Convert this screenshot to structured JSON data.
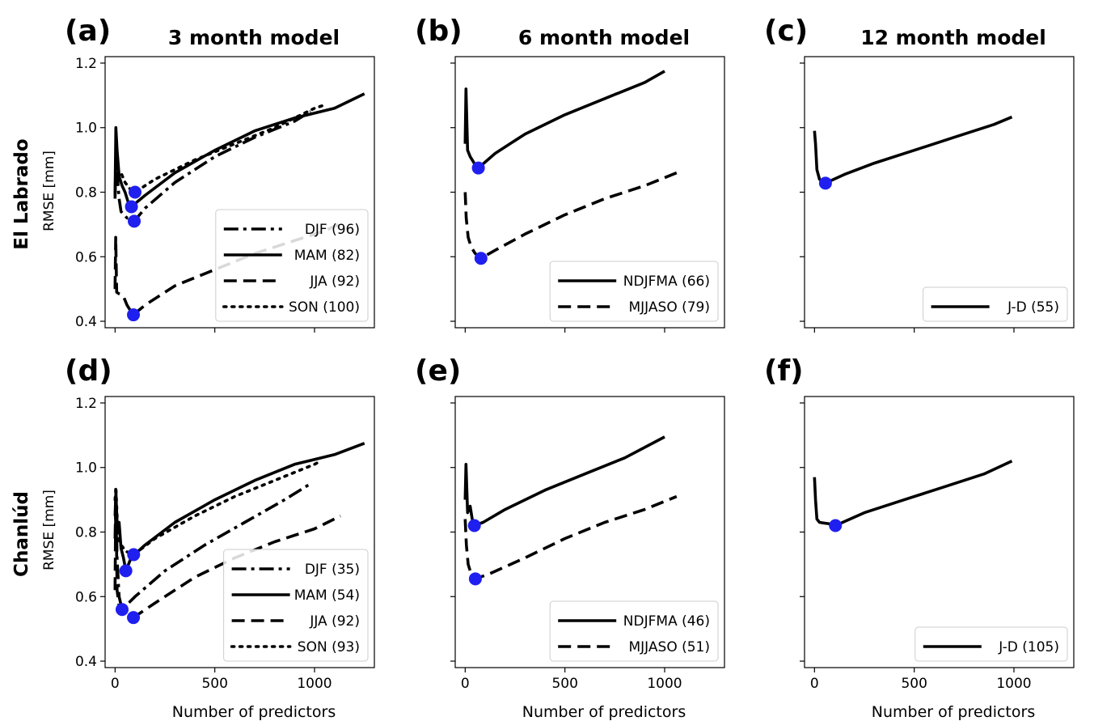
{
  "figure": {
    "rows": [
      {
        "label": "El Labrado",
        "ylabel": "RMSE [mm]"
      },
      {
        "label": "Chanlúd",
        "ylabel": "RMSE [mm]"
      }
    ],
    "columns": [
      {
        "title": "3 month model"
      },
      {
        "title": "6 month model"
      },
      {
        "title": "12 month model"
      }
    ],
    "xlabel": "Number of predictors",
    "x_ticks": [
      0,
      500,
      1000
    ],
    "y_ticks": [
      "0.4",
      "0.6",
      "0.8",
      "1.0",
      "1.2"
    ],
    "colors": {
      "line": "#000000",
      "marker": "#1f1ff0",
      "legend_border": "#cccccc"
    }
  },
  "chart_data": [
    {
      "panel": "(a)",
      "row": 0,
      "col": 0,
      "type": "line",
      "xlim": [
        -50,
        1300
      ],
      "ylim": [
        0.38,
        1.22
      ],
      "legend_position": "lower-right",
      "series": [
        {
          "name": "DJF (96)",
          "style": "dashdot",
          "min": [
            96,
            0.71
          ],
          "points": [
            [
              0,
              0.78
            ],
            [
              5,
              0.95
            ],
            [
              10,
              0.86
            ],
            [
              20,
              0.78
            ],
            [
              30,
              0.74
            ],
            [
              45,
              0.73
            ],
            [
              60,
              0.72
            ],
            [
              80,
              0.72
            ],
            [
              96,
              0.71
            ],
            [
              150,
              0.75
            ],
            [
              300,
              0.83
            ],
            [
              500,
              0.91
            ],
            [
              700,
              0.97
            ],
            [
              900,
              1.02
            ],
            [
              980,
              1.05
            ]
          ]
        },
        {
          "name": "MAM (82)",
          "style": "solid",
          "min": [
            82,
            0.755
          ],
          "points": [
            [
              0,
              0.79
            ],
            [
              4,
              1.0
            ],
            [
              10,
              0.93
            ],
            [
              20,
              0.85
            ],
            [
              35,
              0.82
            ],
            [
              50,
              0.8
            ],
            [
              65,
              0.77
            ],
            [
              82,
              0.755
            ],
            [
              150,
              0.79
            ],
            [
              300,
              0.86
            ],
            [
              500,
              0.93
            ],
            [
              700,
              0.99
            ],
            [
              900,
              1.03
            ],
            [
              1100,
              1.06
            ],
            [
              1250,
              1.105
            ]
          ]
        },
        {
          "name": "JJA (92)",
          "style": "dashed",
          "min": [
            92,
            0.42
          ],
          "points": [
            [
              0,
              0.5
            ],
            [
              3,
              0.66
            ],
            [
              8,
              0.49
            ],
            [
              20,
              0.485
            ],
            [
              40,
              0.48
            ],
            [
              60,
              0.45
            ],
            [
              80,
              0.43
            ],
            [
              92,
              0.42
            ],
            [
              150,
              0.45
            ],
            [
              300,
              0.51
            ],
            [
              500,
              0.56
            ],
            [
              700,
              0.61
            ],
            [
              900,
              0.65
            ],
            [
              1050,
              0.68
            ],
            [
              1120,
              0.7
            ]
          ]
        },
        {
          "name": "SON (100)",
          "style": "dotted",
          "min": [
            100,
            0.8
          ],
          "points": [
            [
              0,
              0.8
            ],
            [
              5,
              0.9
            ],
            [
              15,
              0.87
            ],
            [
              30,
              0.86
            ],
            [
              50,
              0.83
            ],
            [
              75,
              0.81
            ],
            [
              100,
              0.8
            ],
            [
              200,
              0.84
            ],
            [
              400,
              0.9
            ],
            [
              600,
              0.95
            ],
            [
              800,
              1.0
            ],
            [
              1000,
              1.06
            ],
            [
              1050,
              1.07
            ]
          ]
        }
      ]
    },
    {
      "panel": "(b)",
      "row": 0,
      "col": 1,
      "type": "line",
      "xlim": [
        -50,
        1300
      ],
      "ylim": [
        0.38,
        1.22
      ],
      "legend_position": "lower-right",
      "series": [
        {
          "name": "NDJFMA (66)",
          "style": "solid",
          "min": [
            66,
            0.875
          ],
          "points": [
            [
              0,
              0.95
            ],
            [
              4,
              1.12
            ],
            [
              12,
              0.93
            ],
            [
              25,
              0.91
            ],
            [
              45,
              0.89
            ],
            [
              66,
              0.875
            ],
            [
              150,
              0.92
            ],
            [
              300,
              0.98
            ],
            [
              500,
              1.04
            ],
            [
              700,
              1.09
            ],
            [
              900,
              1.14
            ],
            [
              1000,
              1.175
            ]
          ]
        },
        {
          "name": "MJJASO (79)",
          "style": "dashed",
          "min": [
            79,
            0.595
          ],
          "points": [
            [
              0,
              0.8
            ],
            [
              5,
              0.72
            ],
            [
              15,
              0.66
            ],
            [
              30,
              0.63
            ],
            [
              50,
              0.61
            ],
            [
              79,
              0.595
            ],
            [
              150,
              0.62
            ],
            [
              300,
              0.67
            ],
            [
              500,
              0.73
            ],
            [
              700,
              0.78
            ],
            [
              900,
              0.82
            ],
            [
              1060,
              0.86
            ]
          ]
        }
      ]
    },
    {
      "panel": "(c)",
      "row": 0,
      "col": 2,
      "type": "line",
      "xlim": [
        -50,
        1300
      ],
      "ylim": [
        0.38,
        1.22
      ],
      "legend_position": "lower-right",
      "series": [
        {
          "name": "J-D (55)",
          "style": "solid",
          "min": [
            55,
            0.828
          ],
          "points": [
            [
              0,
              0.99
            ],
            [
              5,
              0.95
            ],
            [
              12,
              0.87
            ],
            [
              25,
              0.84
            ],
            [
              40,
              0.832
            ],
            [
              55,
              0.828
            ],
            [
              150,
              0.855
            ],
            [
              300,
              0.89
            ],
            [
              500,
              0.93
            ],
            [
              700,
              0.97
            ],
            [
              900,
              1.01
            ],
            [
              990,
              1.033
            ]
          ]
        }
      ]
    },
    {
      "panel": "(d)",
      "row": 1,
      "col": 0,
      "type": "line",
      "xlim": [
        -50,
        1300
      ],
      "ylim": [
        0.38,
        1.22
      ],
      "legend_position": "lower-right",
      "series": [
        {
          "name": "DJF (35)",
          "style": "dashdot",
          "min": [
            35,
            0.56
          ],
          "points": [
            [
              0,
              0.78
            ],
            [
              4,
              0.91
            ],
            [
              10,
              0.72
            ],
            [
              20,
              0.6
            ],
            [
              35,
              0.56
            ],
            [
              100,
              0.6
            ],
            [
              250,
              0.68
            ],
            [
              450,
              0.76
            ],
            [
              650,
              0.83
            ],
            [
              850,
              0.9
            ],
            [
              980,
              0.95
            ]
          ]
        },
        {
          "name": "MAM (54)",
          "style": "solid",
          "min": [
            54,
            0.68
          ],
          "points": [
            [
              0,
              0.85
            ],
            [
              4,
              0.92
            ],
            [
              12,
              0.8
            ],
            [
              20,
              0.83
            ],
            [
              30,
              0.75
            ],
            [
              42,
              0.72
            ],
            [
              54,
              0.68
            ],
            [
              80,
              0.72
            ],
            [
              150,
              0.76
            ],
            [
              300,
              0.83
            ],
            [
              500,
              0.9
            ],
            [
              700,
              0.96
            ],
            [
              900,
              1.01
            ],
            [
              1100,
              1.04
            ],
            [
              1250,
              1.075
            ]
          ]
        },
        {
          "name": "JJA (92)",
          "style": "dashed",
          "min": [
            92,
            0.535
          ],
          "points": [
            [
              0,
              0.62
            ],
            [
              4,
              0.93
            ],
            [
              10,
              0.62
            ],
            [
              20,
              0.57
            ],
            [
              40,
              0.56
            ],
            [
              60,
              0.55
            ],
            [
              92,
              0.535
            ],
            [
              200,
              0.58
            ],
            [
              400,
              0.66
            ],
            [
              600,
              0.72
            ],
            [
              800,
              0.77
            ],
            [
              1000,
              0.81
            ],
            [
              1130,
              0.85
            ]
          ]
        },
        {
          "name": "SON (93)",
          "style": "dotted",
          "min": [
            93,
            0.73
          ],
          "points": [
            [
              0,
              0.9
            ],
            [
              4,
              0.94
            ],
            [
              15,
              0.78
            ],
            [
              30,
              0.76
            ],
            [
              55,
              0.74
            ],
            [
              93,
              0.73
            ],
            [
              200,
              0.78
            ],
            [
              400,
              0.85
            ],
            [
              600,
              0.91
            ],
            [
              800,
              0.96
            ],
            [
              1000,
              1.01
            ],
            [
              1030,
              1.02
            ]
          ]
        }
      ]
    },
    {
      "panel": "(e)",
      "row": 1,
      "col": 1,
      "type": "line",
      "xlim": [
        -50,
        1300
      ],
      "ylim": [
        0.38,
        1.22
      ],
      "legend_position": "lower-right",
      "series": [
        {
          "name": "NDJFMA (46)",
          "style": "solid",
          "min": [
            46,
            0.82
          ],
          "points": [
            [
              0,
              0.9
            ],
            [
              4,
              1.01
            ],
            [
              12,
              0.86
            ],
            [
              25,
              0.88
            ],
            [
              35,
              0.84
            ],
            [
              46,
              0.82
            ],
            [
              90,
              0.83
            ],
            [
              200,
              0.87
            ],
            [
              400,
              0.93
            ],
            [
              600,
              0.98
            ],
            [
              800,
              1.03
            ],
            [
              1000,
              1.095
            ]
          ]
        },
        {
          "name": "MJJASO (51)",
          "style": "dashed",
          "min": [
            51,
            0.655
          ],
          "points": [
            [
              0,
              0.84
            ],
            [
              6,
              0.76
            ],
            [
              15,
              0.7
            ],
            [
              30,
              0.67
            ],
            [
              51,
              0.655
            ],
            [
              120,
              0.67
            ],
            [
              300,
              0.72
            ],
            [
              500,
              0.78
            ],
            [
              700,
              0.83
            ],
            [
              900,
              0.87
            ],
            [
              1060,
              0.91
            ]
          ]
        }
      ]
    },
    {
      "panel": "(f)",
      "row": 1,
      "col": 2,
      "type": "line",
      "xlim": [
        -50,
        1300
      ],
      "ylim": [
        0.38,
        1.22
      ],
      "legend_position": "lower-right",
      "series": [
        {
          "name": "J-D (105)",
          "style": "solid",
          "min": [
            105,
            0.82
          ],
          "points": [
            [
              0,
              0.97
            ],
            [
              5,
              0.9
            ],
            [
              12,
              0.84
            ],
            [
              25,
              0.83
            ],
            [
              45,
              0.828
            ],
            [
              70,
              0.826
            ],
            [
              105,
              0.82
            ],
            [
              250,
              0.86
            ],
            [
              450,
              0.9
            ],
            [
              650,
              0.94
            ],
            [
              850,
              0.98
            ],
            [
              990,
              1.02
            ]
          ]
        }
      ]
    }
  ]
}
